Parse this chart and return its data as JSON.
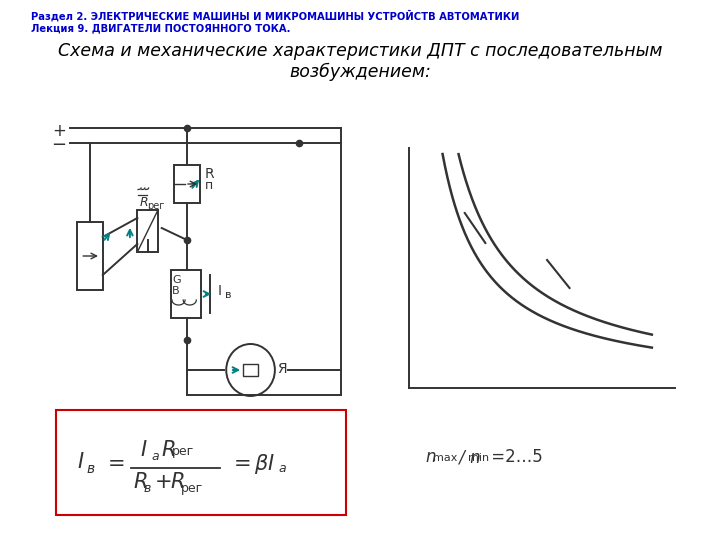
{
  "header_line1": "Раздел 2. ЭЛЕКТРИЧЕСКИЕ МАШИНЫ И МИКРОМАШИНЫ УСТРОЙСТВ АВТОМАТИКИ",
  "header_line2": "Лекция 9. ДВИГАТЕЛИ ПОСТОЯННОГО ТОКА.",
  "header_color": "#0000cc",
  "title": "Схема и механические характеристики ДПТ с последовательным\nвозбуждением:",
  "title_color": "#000000",
  "bg_color": "#ffffff",
  "gray": "#333333",
  "teal": "#008080",
  "red": "#cc0000"
}
